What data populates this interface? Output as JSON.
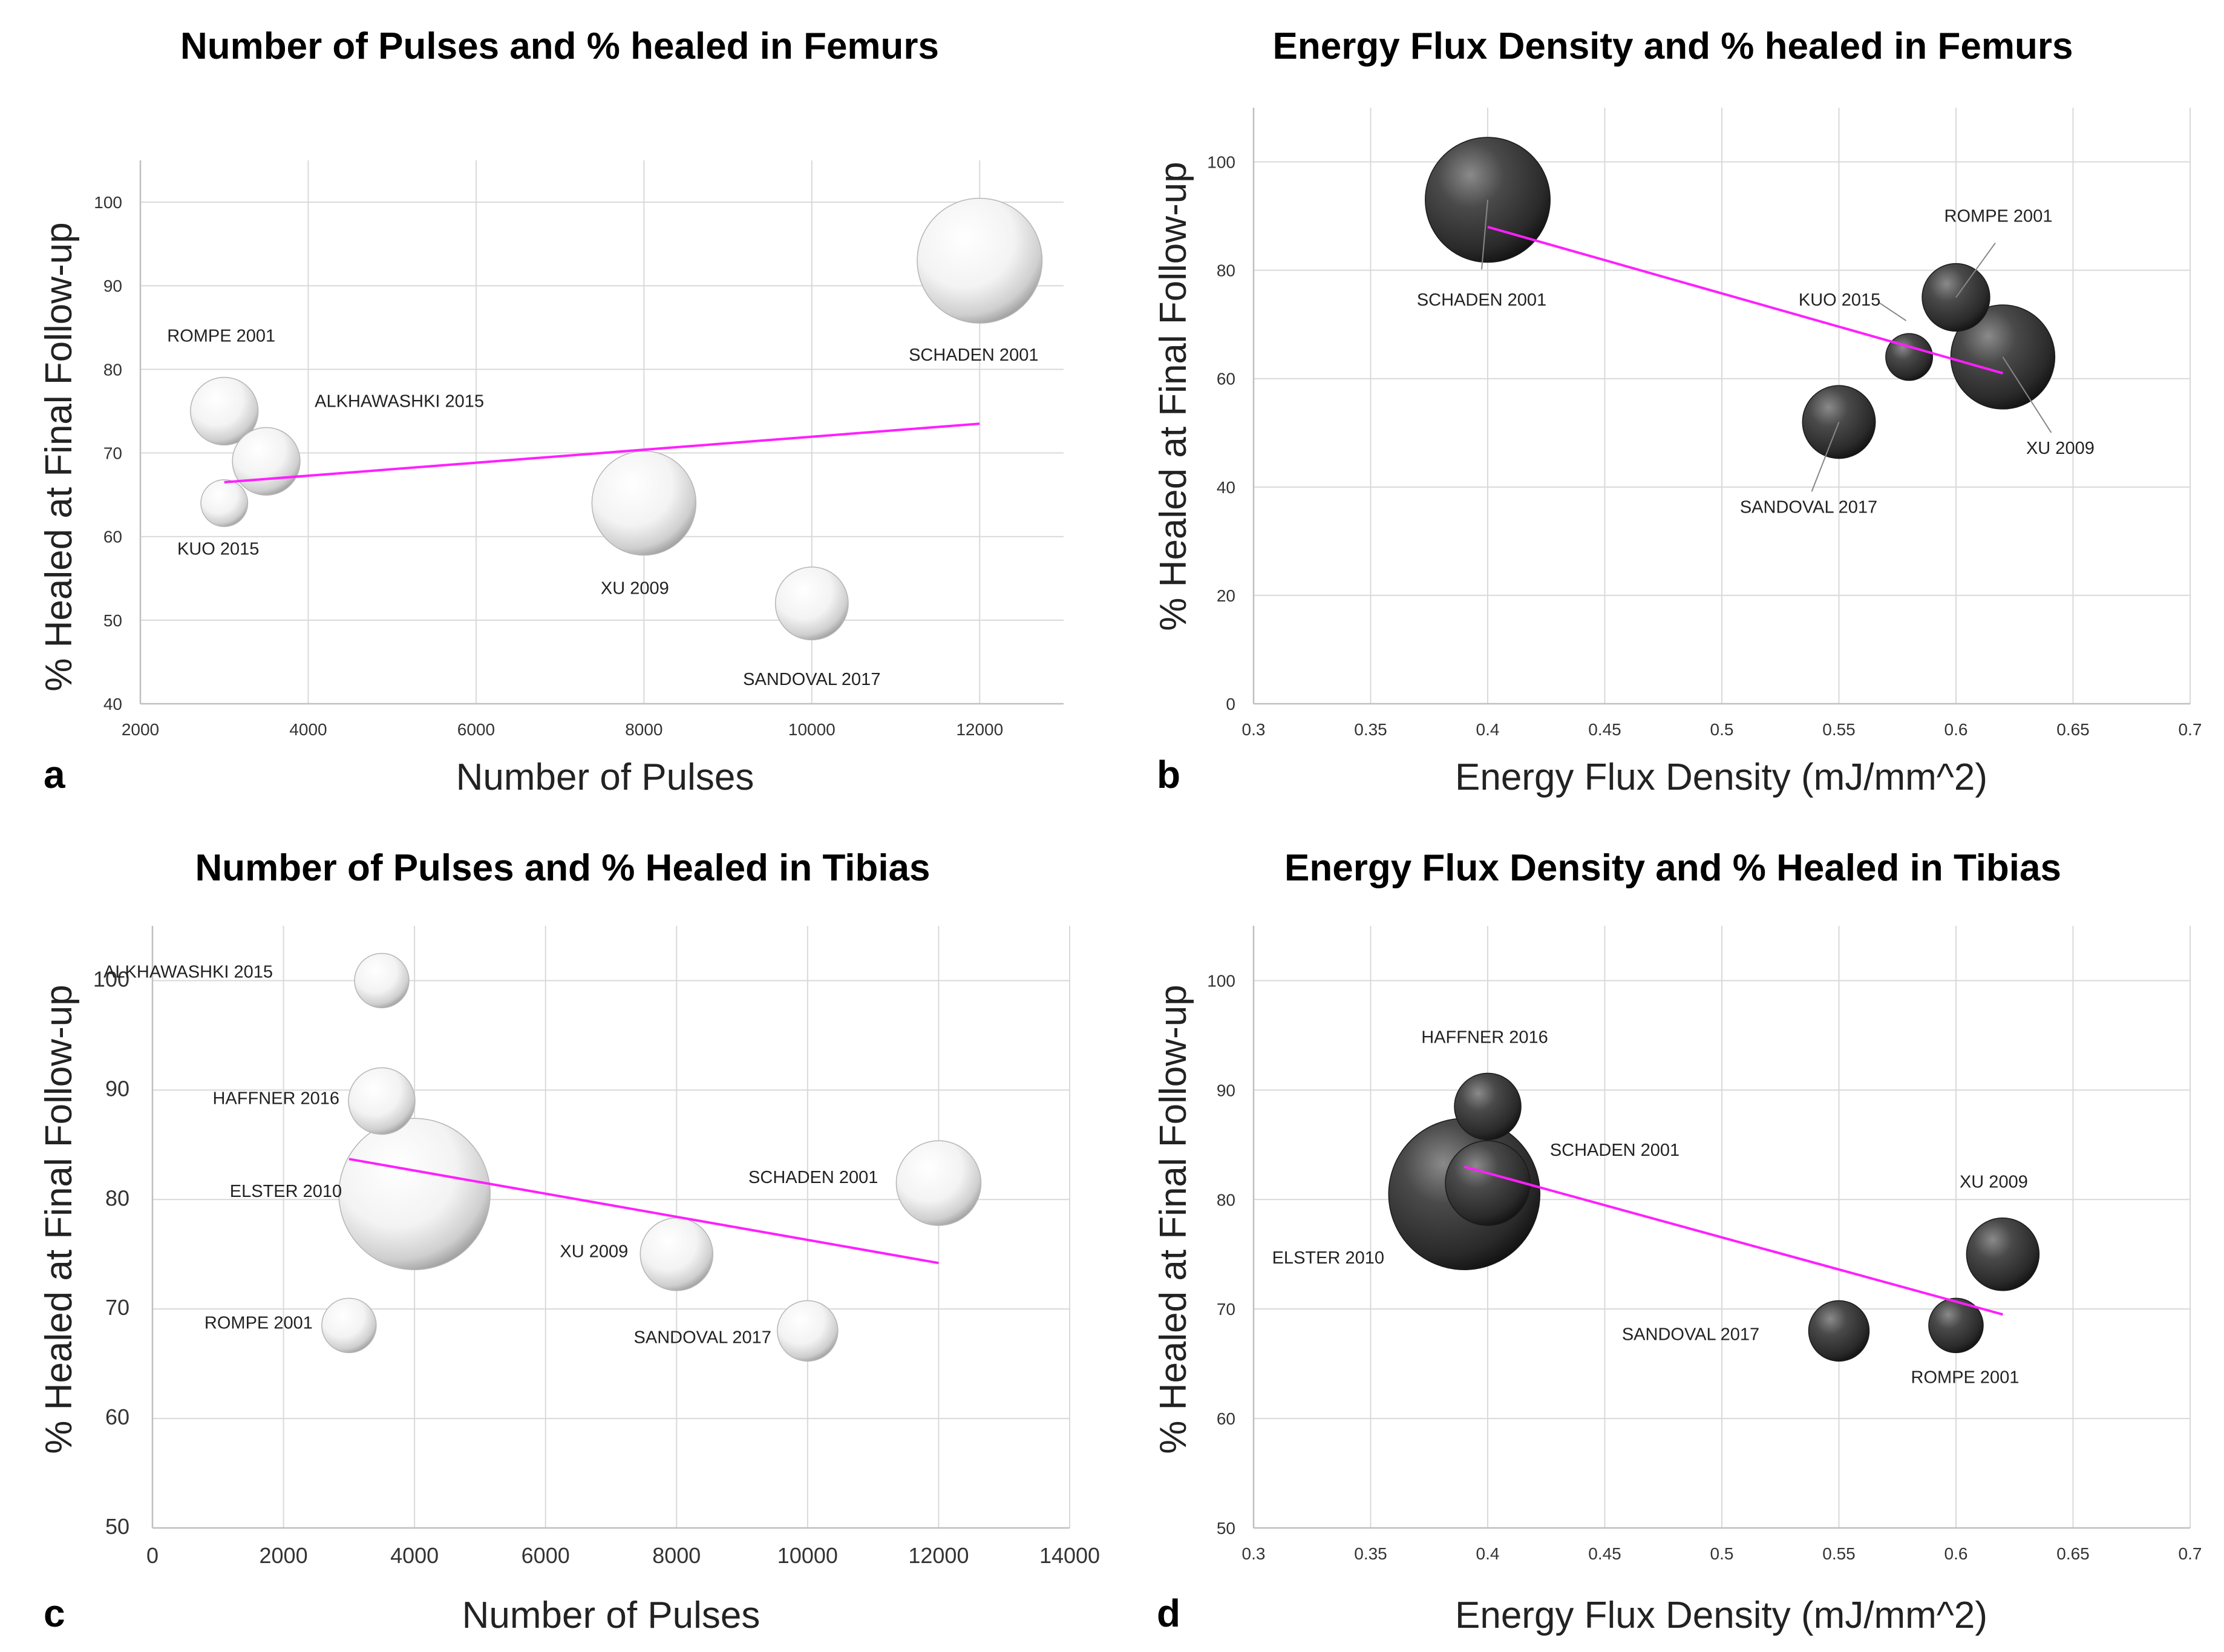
{
  "figure": {
    "panel_labels": [
      "a",
      "b",
      "c",
      "d"
    ],
    "colors": {
      "light_bubble": "#ffffff",
      "dark_bubble": "#3a3a3a",
      "trendline": "#ff1fff",
      "grid": "#d9d9d9"
    }
  },
  "chart_data": [
    {
      "type": "bubble",
      "title": "Number of Pulses and % healed in Femurs",
      "xlabel": "Number of Pulses",
      "ylabel": "% Healed at Final Follow-up",
      "xlim": [
        2000,
        13000
      ],
      "ylim": [
        40,
        105
      ],
      "xticks": [
        "2000",
        "4000",
        "6000",
        "8000",
        "10000",
        "12000"
      ],
      "yticks": [
        "40",
        "50",
        "60",
        "70",
        "80",
        "90",
        "100"
      ],
      "bubble_style": "light",
      "points": [
        {
          "label": "ROMPE 2001",
          "x": 3000,
          "y": 75,
          "size": 13
        },
        {
          "label": "ALKHAWASHKI 2015",
          "x": 3500,
          "y": 69,
          "size": 13
        },
        {
          "label": "KUO 2015",
          "x": 3000,
          "y": 64,
          "size": 9
        },
        {
          "label": "XU 2009",
          "x": 8000,
          "y": 64,
          "size": 20
        },
        {
          "label": "SANDOVAL 2017",
          "x": 10000,
          "y": 52,
          "size": 14
        },
        {
          "label": "SCHADEN 2001",
          "x": 12000,
          "y": 93,
          "size": 24
        }
      ],
      "trendline": {
        "x1": 3000,
        "y1": 66.5,
        "x2": 12000,
        "y2": 73.5
      }
    },
    {
      "type": "bubble",
      "title": "Energy Flux Density and % healed in Femurs",
      "xlabel": "Energy Flux Density (mJ/mm^2)",
      "ylabel": "% Healed at Final Follow-up",
      "xlim": [
        0.3,
        0.7
      ],
      "ylim": [
        0,
        110
      ],
      "xticks": [
        "0.3",
        "0.35",
        "0.4",
        "0.45",
        "0.5",
        "0.55",
        "0.6",
        "0.65",
        "0.7"
      ],
      "yticks": [
        "0",
        "20",
        "40",
        "60",
        "80",
        "100"
      ],
      "bubble_style": "dark",
      "points": [
        {
          "label": "SCHADEN 2001",
          "x": 0.4,
          "y": 93,
          "size": 24
        },
        {
          "label": "ROMPE 2001",
          "x": 0.6,
          "y": 75,
          "size": 13
        },
        {
          "label": "KUO 2015",
          "x": 0.58,
          "y": 64,
          "size": 9
        },
        {
          "label": "XU 2009",
          "x": 0.62,
          "y": 64,
          "size": 20
        },
        {
          "label": "SANDOVAL 2017",
          "x": 0.55,
          "y": 52,
          "size": 14
        }
      ],
      "trendline": {
        "x1": 0.4,
        "y1": 88,
        "x2": 0.62,
        "y2": 61
      }
    },
    {
      "type": "bubble",
      "title": "Number of Pulses and % Healed in Tibias",
      "xlabel": "Number of Pulses",
      "ylabel": "% Healed at Final Follow-up",
      "xlim": [
        0,
        14000
      ],
      "ylim": [
        50,
        105
      ],
      "xticks": [
        "0",
        "2000",
        "4000",
        "6000",
        "8000",
        "10000",
        "12000",
        "14000"
      ],
      "yticks": [
        "50",
        "60",
        "70",
        "80",
        "90",
        "100"
      ],
      "bubble_style": "light",
      "points": [
        {
          "label": "ALKHAWASHKI 2015",
          "x": 3500,
          "y": 100,
          "size": 9
        },
        {
          "label": "HAFFNER 2016",
          "x": 3500,
          "y": 89,
          "size": 11
        },
        {
          "label": "ELSTER 2010",
          "x": 4000,
          "y": 80.5,
          "size": 25
        },
        {
          "label": "XU 2009",
          "x": 8000,
          "y": 75,
          "size": 12
        },
        {
          "label": "ROMPE 2001",
          "x": 3000,
          "y": 68.5,
          "size": 9
        },
        {
          "label": "SANDOVAL 2017",
          "x": 10000,
          "y": 68,
          "size": 10
        },
        {
          "label": "SCHADEN 2001",
          "x": 12000,
          "y": 81.5,
          "size": 14
        }
      ],
      "trendline": {
        "x1": 3000,
        "y1": 83.7,
        "x2": 12000,
        "y2": 74.2
      }
    },
    {
      "type": "bubble",
      "title": "Energy Flux Density and % Healed in Tibias",
      "xlabel": "Energy Flux Density (mJ/mm^2)",
      "ylabel": "% Healed at Final Follow-up",
      "xlim": [
        0.3,
        0.7
      ],
      "ylim": [
        50,
        105
      ],
      "xticks": [
        "0.3",
        "0.35",
        "0.4",
        "0.45",
        "0.5",
        "0.55",
        "0.6",
        "0.65",
        "0.7"
      ],
      "yticks": [
        "50",
        "60",
        "70",
        "80",
        "90",
        "100"
      ],
      "bubble_style": "dark",
      "points": [
        {
          "label": "HAFFNER 2016",
          "x": 0.4,
          "y": 88.5,
          "size": 11
        },
        {
          "label": "SCHADEN 2001",
          "x": 0.4,
          "y": 81.5,
          "size": 14
        },
        {
          "label": "ELSTER 2010",
          "x": 0.39,
          "y": 80.5,
          "size": 25
        },
        {
          "label": "XU 2009",
          "x": 0.62,
          "y": 75,
          "size": 12
        },
        {
          "label": "SANDOVAL 2017",
          "x": 0.55,
          "y": 68,
          "size": 10
        },
        {
          "label": "ROMPE 2001",
          "x": 0.6,
          "y": 68.5,
          "size": 9
        }
      ],
      "trendline": {
        "x1": 0.39,
        "y1": 83,
        "x2": 0.62,
        "y2": 69.5
      }
    }
  ]
}
